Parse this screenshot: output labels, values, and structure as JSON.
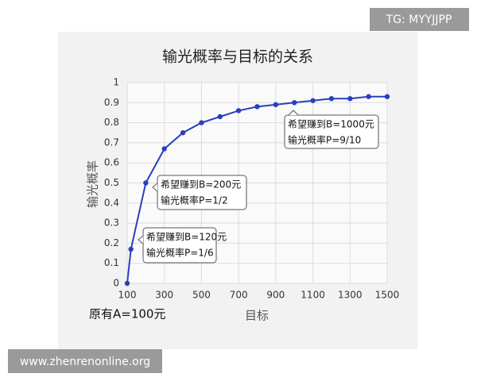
{
  "chart_data": {
    "type": "line",
    "title": "输光概率与目标的关系",
    "x_label": "目标",
    "y_label": "输光概率",
    "note": "原有A=100元",
    "x": [
      100,
      120,
      200,
      300,
      400,
      500,
      600,
      700,
      800,
      900,
      1000,
      1100,
      1200,
      1300,
      1400,
      1500
    ],
    "series": [
      {
        "color": "#2a3fbf",
        "values": [
          0,
          0.17,
          0.5,
          0.67,
          0.75,
          0.8,
          0.83,
          0.86,
          0.88,
          0.89,
          0.9,
          0.91,
          0.92,
          0.92,
          0.93,
          0.93
        ]
      }
    ],
    "xlim": [
      100,
      1500
    ],
    "xticks": [
      100,
      300,
      500,
      700,
      900,
      1100,
      1300,
      1500
    ],
    "ylim": [
      0,
      1
    ],
    "yticks": [
      0,
      0.1,
      0.2,
      0.3,
      0.4,
      0.5,
      0.6,
      0.7,
      0.8,
      0.9,
      1
    ],
    "grid": true,
    "annotations": [
      {
        "lines": [
          "希望赚到B=120元",
          "输光概率P=1/6"
        ]
      },
      {
        "lines": [
          "希望赚到B=200元",
          "输光概率P=1/2"
        ]
      },
      {
        "lines": [
          "希望赚到B=1000元",
          "输光概率P=9/10"
        ]
      }
    ]
  },
  "watermarks": [
    "TG: MYYJJPP",
    "www.zhenrenonline.org"
  ]
}
